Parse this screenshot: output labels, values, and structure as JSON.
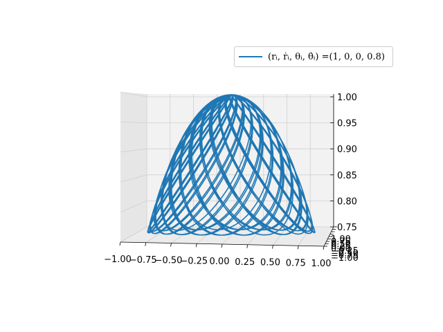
{
  "chart_data": {
    "type": "line",
    "projection": "3d",
    "series": [
      {
        "name": "(rᵢ, ṙᵢ, θᵢ, θ̇ᵢ) =(1, 0, 0, 0.8)",
        "color": "#1f77b4"
      }
    ],
    "curve": {
      "kind": "spherical-pendulum-trajectory",
      "radius": 1,
      "z_range": [
        0.75,
        1.0
      ],
      "theta_dot_initial": 0.8
    },
    "x_ticks": [
      "−1.00",
      "−0.75",
      "−0.50",
      "−0.25",
      "0.00",
      "0.25",
      "0.50",
      "0.75",
      "1.00"
    ],
    "z_ticks": [
      "0.75",
      "0.80",
      "0.85",
      "0.90",
      "0.95",
      "1.00"
    ],
    "y_ticks": [
      "−1.00",
      "−0.75",
      "−0.50",
      "−0.25",
      "0.00",
      "0.25",
      "0.50",
      "0.75",
      "1.00"
    ],
    "xlim": [
      -1,
      1
    ],
    "ylim": [
      -1,
      1
    ],
    "zlim": [
      0.75,
      1.0
    ],
    "legend_position": "top-right",
    "grid": true
  }
}
